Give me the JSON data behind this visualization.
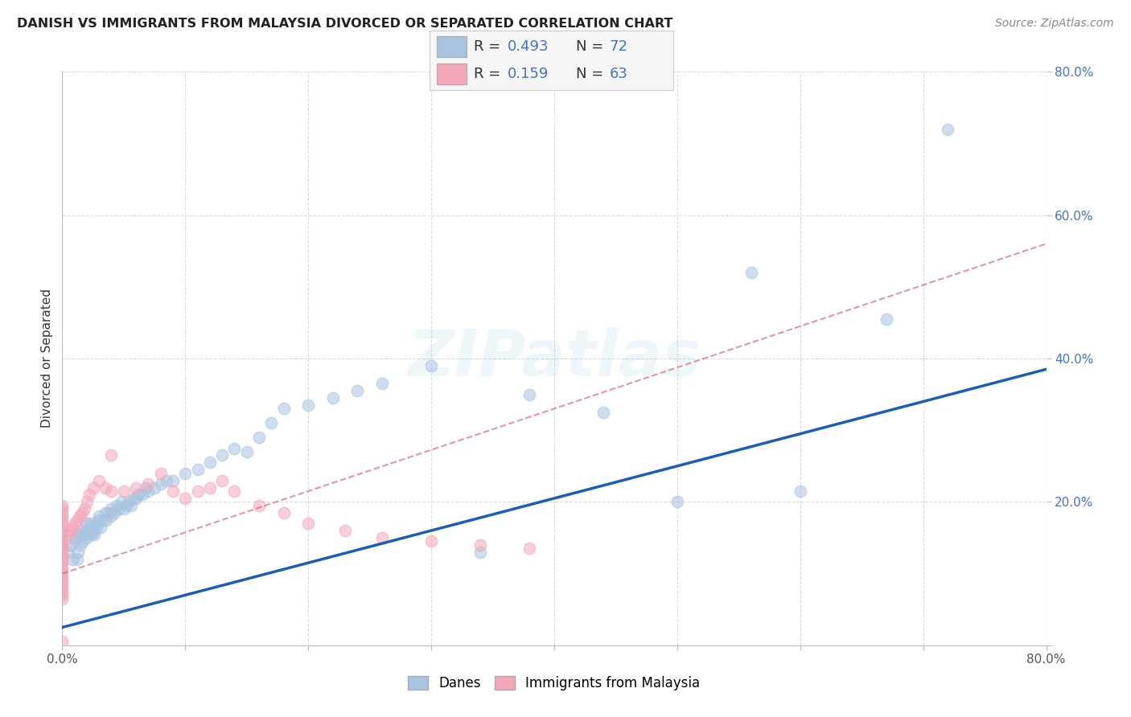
{
  "title": "DANISH VS IMMIGRANTS FROM MALAYSIA DIVORCED OR SEPARATED CORRELATION CHART",
  "source": "Source: ZipAtlas.com",
  "ylabel": "Divorced or Separated",
  "xlim": [
    0,
    0.8
  ],
  "ylim": [
    0,
    0.8
  ],
  "blue_R": 0.493,
  "blue_N": 72,
  "pink_R": 0.159,
  "pink_N": 63,
  "blue_color": "#a8c4e0",
  "pink_color": "#f4a7b9",
  "blue_line_color": "#1a5fb4",
  "pink_line_color": "#d06070",
  "grid_color": "#cccccc",
  "watermark_text": "ZIPatlas",
  "blue_line_x0": 0.0,
  "blue_line_y0": 0.025,
  "blue_line_x1": 0.8,
  "blue_line_y1": 0.385,
  "pink_line_x0": 0.0,
  "pink_line_y0": 0.1,
  "pink_line_x1": 0.8,
  "pink_line_y1": 0.56,
  "blue_scatter_x": [
    0.005,
    0.007,
    0.008,
    0.01,
    0.01,
    0.012,
    0.013,
    0.014,
    0.015,
    0.015,
    0.017,
    0.018,
    0.019,
    0.02,
    0.02,
    0.021,
    0.022,
    0.023,
    0.024,
    0.025,
    0.026,
    0.027,
    0.028,
    0.03,
    0.03,
    0.031,
    0.033,
    0.035,
    0.036,
    0.038,
    0.04,
    0.04,
    0.042,
    0.044,
    0.046,
    0.048,
    0.05,
    0.052,
    0.054,
    0.056,
    0.058,
    0.06,
    0.062,
    0.065,
    0.068,
    0.07,
    0.075,
    0.08,
    0.085,
    0.09,
    0.1,
    0.11,
    0.12,
    0.13,
    0.14,
    0.15,
    0.16,
    0.17,
    0.18,
    0.2,
    0.22,
    0.24,
    0.26,
    0.3,
    0.34,
    0.38,
    0.44,
    0.5,
    0.56,
    0.6,
    0.67,
    0.72
  ],
  "blue_scatter_y": [
    0.13,
    0.14,
    0.12,
    0.145,
    0.15,
    0.12,
    0.13,
    0.155,
    0.14,
    0.16,
    0.145,
    0.155,
    0.16,
    0.15,
    0.17,
    0.155,
    0.165,
    0.17,
    0.155,
    0.16,
    0.155,
    0.17,
    0.165,
    0.175,
    0.18,
    0.165,
    0.175,
    0.185,
    0.175,
    0.185,
    0.18,
    0.19,
    0.185,
    0.195,
    0.19,
    0.2,
    0.19,
    0.195,
    0.2,
    0.195,
    0.205,
    0.205,
    0.21,
    0.21,
    0.22,
    0.215,
    0.22,
    0.225,
    0.23,
    0.23,
    0.24,
    0.245,
    0.255,
    0.265,
    0.275,
    0.27,
    0.29,
    0.31,
    0.33,
    0.335,
    0.345,
    0.355,
    0.365,
    0.39,
    0.13,
    0.35,
    0.325,
    0.2,
    0.52,
    0.215,
    0.455,
    0.72
  ],
  "pink_scatter_x": [
    0.0,
    0.0,
    0.0,
    0.0,
    0.0,
    0.0,
    0.0,
    0.0,
    0.0,
    0.0,
    0.0,
    0.0,
    0.0,
    0.0,
    0.0,
    0.0,
    0.0,
    0.0,
    0.0,
    0.0,
    0.0,
    0.0,
    0.0,
    0.0,
    0.0,
    0.0,
    0.0,
    0.0,
    0.0,
    0.0,
    0.005,
    0.007,
    0.008,
    0.01,
    0.012,
    0.014,
    0.016,
    0.018,
    0.02,
    0.022,
    0.025,
    0.03,
    0.035,
    0.04,
    0.05,
    0.06,
    0.07,
    0.08,
    0.09,
    0.1,
    0.11,
    0.12,
    0.13,
    0.14,
    0.16,
    0.18,
    0.2,
    0.23,
    0.26,
    0.3,
    0.34,
    0.38,
    0.04
  ],
  "pink_scatter_y": [
    0.14,
    0.145,
    0.15,
    0.145,
    0.14,
    0.135,
    0.13,
    0.125,
    0.12,
    0.115,
    0.11,
    0.105,
    0.1,
    0.095,
    0.09,
    0.085,
    0.08,
    0.075,
    0.07,
    0.065,
    0.155,
    0.16,
    0.165,
    0.17,
    0.175,
    0.18,
    0.185,
    0.19,
    0.195,
    0.005,
    0.155,
    0.16,
    0.165,
    0.17,
    0.175,
    0.18,
    0.185,
    0.19,
    0.2,
    0.21,
    0.22,
    0.23,
    0.22,
    0.215,
    0.215,
    0.22,
    0.225,
    0.24,
    0.215,
    0.205,
    0.215,
    0.22,
    0.23,
    0.215,
    0.195,
    0.185,
    0.17,
    0.16,
    0.15,
    0.145,
    0.14,
    0.135,
    0.265
  ]
}
